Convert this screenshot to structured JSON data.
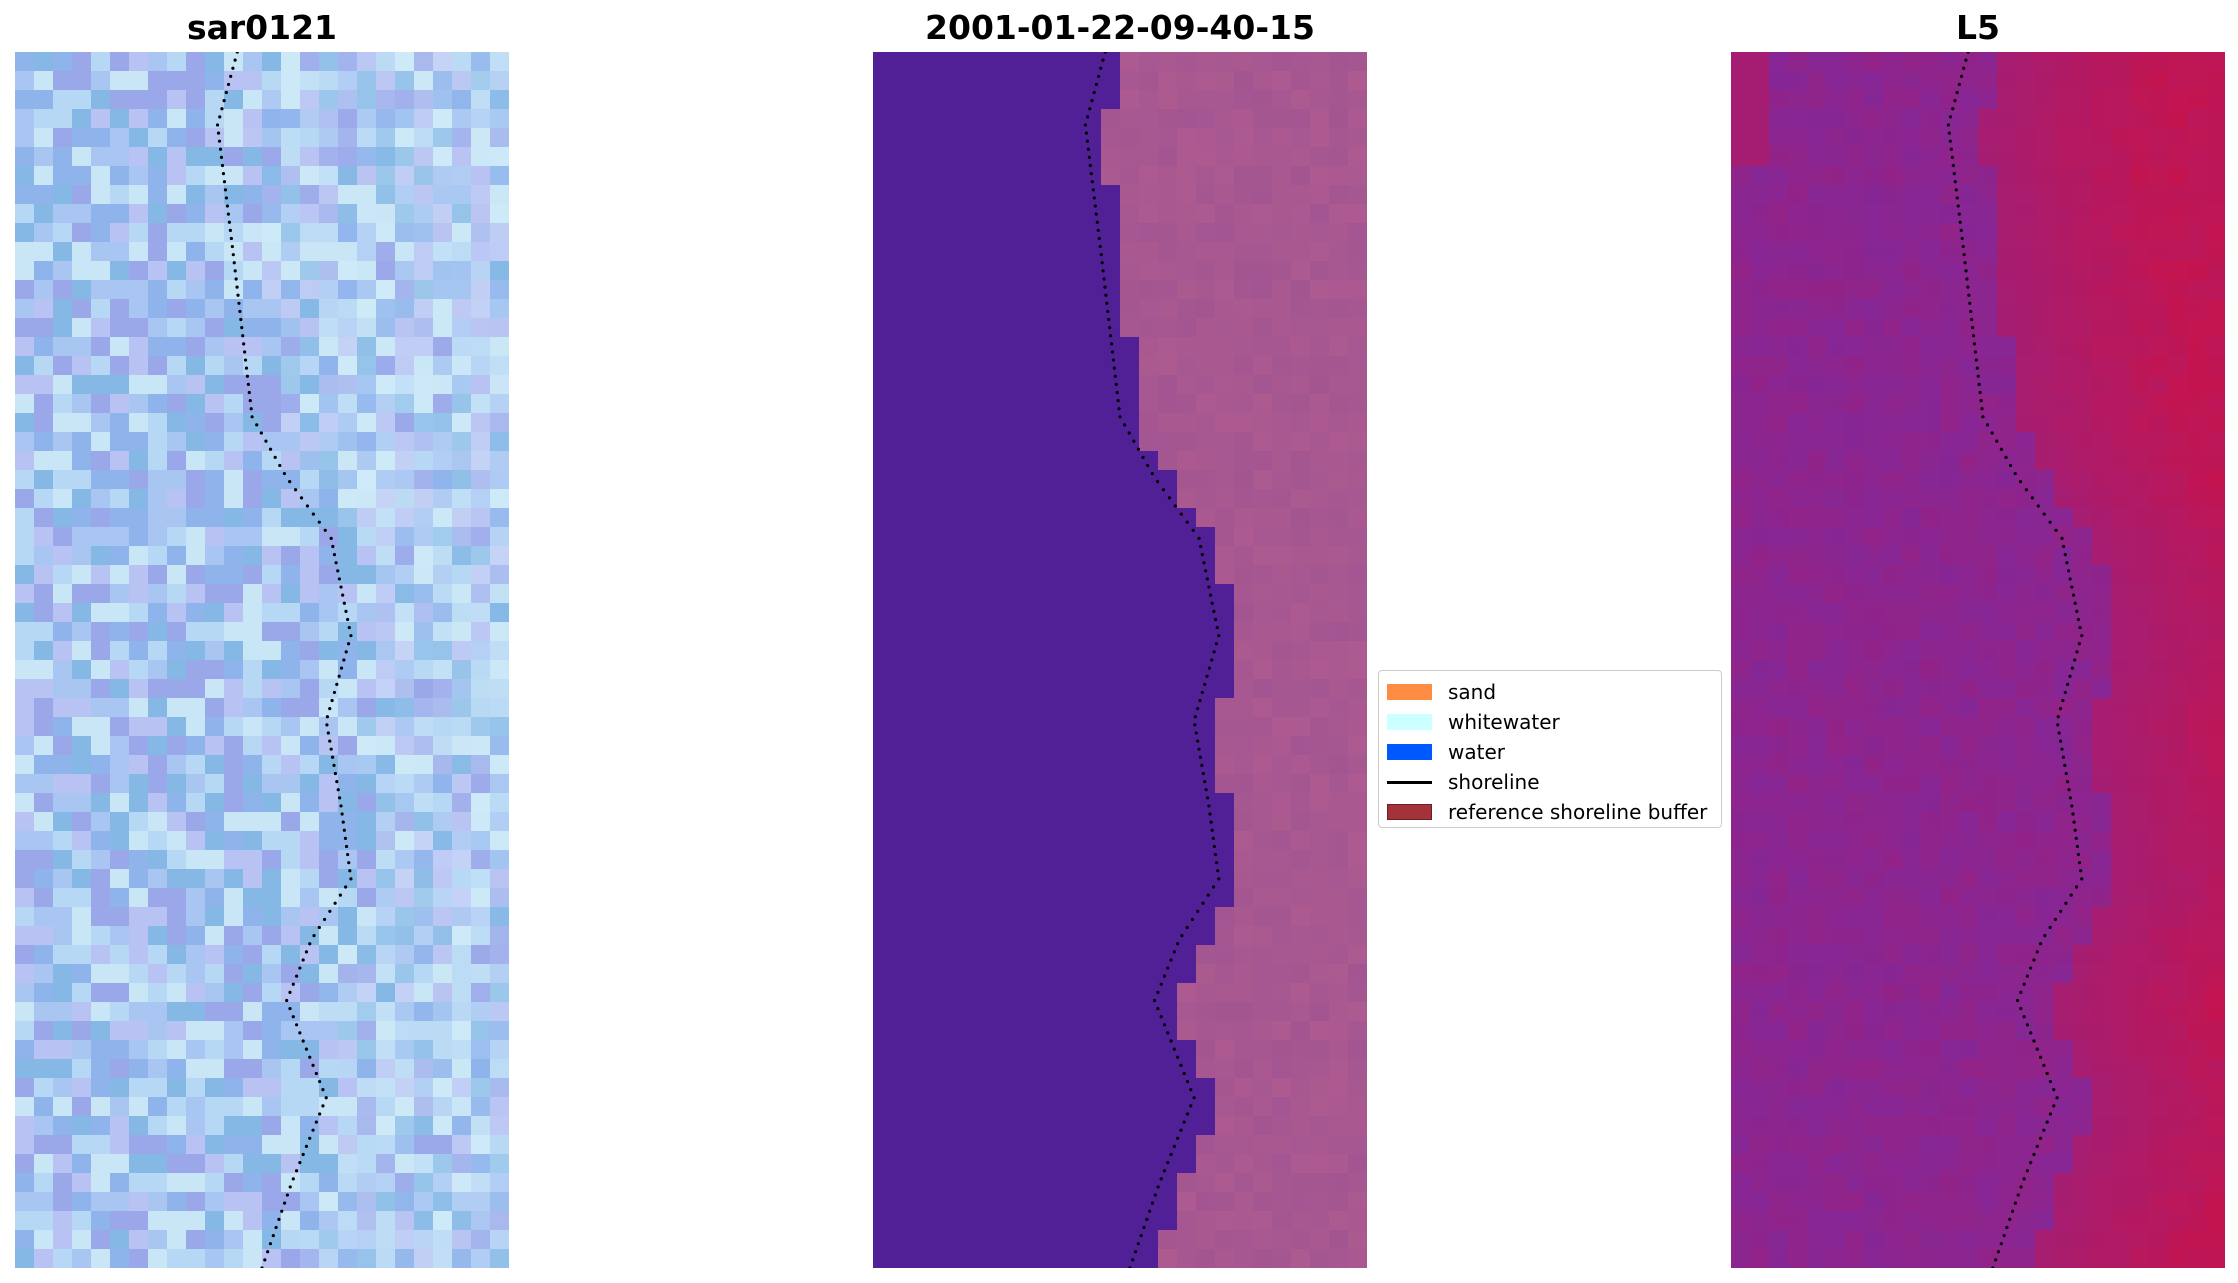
{
  "panels": [
    {
      "title": "sar0121"
    },
    {
      "title": "2001-01-22-09-40-15"
    },
    {
      "title": "L5"
    }
  ],
  "legend": {
    "items": [
      {
        "label": "sand",
        "color": "#ff8c42",
        "kind": "patch"
      },
      {
        "label": "whitewater",
        "color": "#ccffff",
        "kind": "patch"
      },
      {
        "label": "water",
        "color": "#0059ff",
        "kind": "patch"
      },
      {
        "label": "shoreline",
        "color": "#000000",
        "kind": "line"
      },
      {
        "label": "reference shoreline buffer",
        "color": "#a33338",
        "kind": "patch"
      }
    ]
  },
  "colors": {
    "rgb_base": "#a9bff0",
    "classified_water": "#522096",
    "classified_land": "#a25591",
    "index_low": "#7a2aa3",
    "index_high": "#c8134a",
    "shoreline": "#000000"
  }
}
